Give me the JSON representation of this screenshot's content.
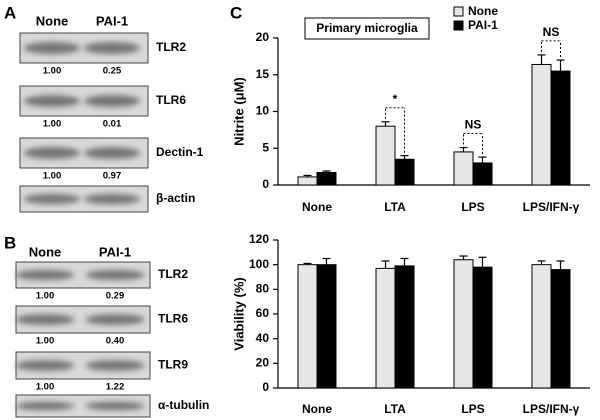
{
  "panel_a": {
    "label": "A",
    "columns": [
      "None",
      "PAI-1"
    ],
    "blots": [
      {
        "name": "TLR2",
        "values": [
          "1.00",
          "0.25"
        ]
      },
      {
        "name": "TLR6",
        "values": [
          "1.00",
          "0.01"
        ]
      },
      {
        "name": "Dectin-1",
        "values": [
          "1.00",
          "0.97"
        ]
      },
      {
        "name": "β-actin"
      }
    ]
  },
  "panel_b": {
    "label": "B",
    "columns": [
      "None",
      "PAI-1"
    ],
    "blots": [
      {
        "name": "TLR2",
        "values": [
          "1.00",
          "0.29"
        ]
      },
      {
        "name": "TLR6",
        "values": [
          "1.00",
          "0.40"
        ]
      },
      {
        "name": "TLR9",
        "values": [
          "1.00",
          "1.22"
        ]
      },
      {
        "name": "α-tubulin"
      }
    ]
  },
  "panel_c": {
    "label": "C"
  },
  "chart_data": [
    {
      "type": "bar",
      "annotation": "Primary microglia",
      "y_label": "Nitrite (μM)",
      "categories": [
        "None",
        "LTA",
        "LPS",
        "LPS/IFN-γ"
      ],
      "series": [
        {
          "name": "None",
          "color": "#e6e6e6",
          "values": [
            1.1,
            8.0,
            4.5,
            16.4
          ],
          "errors": [
            0.2,
            0.6,
            0.6,
            1.3
          ]
        },
        {
          "name": "PAI-1",
          "color": "#000000",
          "values": [
            1.7,
            3.5,
            3.0,
            15.5
          ],
          "errors": [
            0.2,
            0.5,
            0.8,
            1.5
          ]
        }
      ],
      "significance_labels": [
        null,
        "*",
        "NS",
        "NS"
      ],
      "ylim": [
        0,
        20
      ],
      "yticks": [
        0,
        5,
        10,
        15,
        20
      ],
      "legend": "upper right"
    },
    {
      "type": "bar",
      "y_label": "Viability (%)",
      "categories": [
        "None",
        "LTA",
        "LPS",
        "LPS/IFN-γ"
      ],
      "series": [
        {
          "name": "None",
          "color": "#e6e6e6",
          "values": [
            100,
            97,
            104,
            100
          ],
          "errors": [
            1,
            6,
            3,
            3
          ]
        },
        {
          "name": "PAI-1",
          "color": "#000000",
          "values": [
            100,
            99,
            98,
            96
          ],
          "errors": [
            5,
            6,
            8,
            7
          ]
        }
      ],
      "ylim": [
        0,
        120
      ],
      "yticks": [
        0,
        20,
        40,
        60,
        80,
        100,
        120
      ]
    }
  ]
}
